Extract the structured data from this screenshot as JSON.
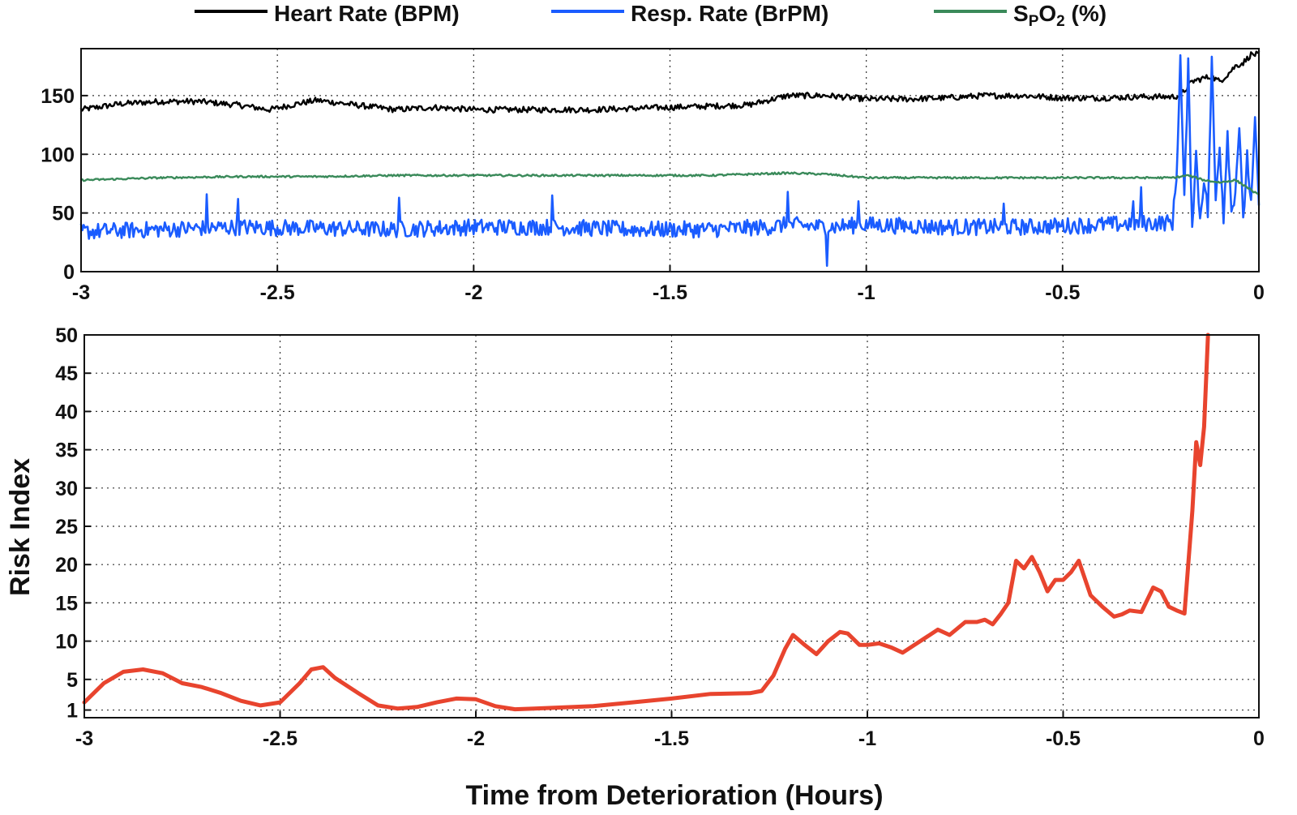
{
  "chart_data": [
    {
      "type": "line",
      "panel": "top",
      "legend_position": "top-center",
      "legend": [
        {
          "label": "Heart Rate (BPM)",
          "color": "#000000"
        },
        {
          "label": "Resp. Rate (BrPM)",
          "color": "#1a5cff"
        },
        {
          "label": "SpO2 (%)",
          "display": {
            "base": "S",
            "sub": "P",
            "mid": "O",
            "sub2": "2",
            "suffix": " (%)"
          },
          "color": "#3a8a5a"
        }
      ],
      "xlim": [
        -3,
        0
      ],
      "ylim": [
        0,
        190
      ],
      "xticks": [
        -3,
        -2.5,
        -2,
        -1.5,
        -1,
        -0.5,
        0
      ],
      "xtick_labels": [
        "-3",
        "-2.5",
        "-2",
        "-1.5",
        "-1",
        "-0.5",
        "0"
      ],
      "yticks": [
        0,
        50,
        100,
        150
      ],
      "ytick_labels": [
        "0",
        "50",
        "100",
        "150"
      ],
      "xlabel": "",
      "ylabel": "",
      "grid": true,
      "series": [
        {
          "name": "Heart Rate (BPM)",
          "color": "#000000",
          "x": [
            -3,
            -2.9,
            -2.8,
            -2.7,
            -2.6,
            -2.52,
            -2.45,
            -2.4,
            -2.3,
            -2.2,
            -2.1,
            -2.0,
            -1.9,
            -1.8,
            -1.7,
            -1.6,
            -1.5,
            -1.4,
            -1.3,
            -1.25,
            -1.2,
            -1.1,
            -1.0,
            -0.9,
            -0.8,
            -0.7,
            -0.6,
            -0.5,
            -0.4,
            -0.3,
            -0.22,
            -0.2,
            -0.17,
            -0.14,
            -0.12,
            -0.1,
            -0.08,
            -0.06,
            -0.04,
            -0.02,
            0
          ],
          "y": [
            138,
            143,
            145,
            145,
            142,
            138,
            143,
            146,
            142,
            138,
            140,
            138,
            138,
            138,
            138,
            139,
            140,
            141,
            142,
            146,
            150,
            150,
            147,
            147,
            148,
            150,
            150,
            148,
            148,
            149,
            149,
            150,
            162,
            165,
            166,
            162,
            168,
            175,
            178,
            185,
            185
          ],
          "noise": 2.5
        },
        {
          "name": "Resp. Rate (BrPM)",
          "color": "#1a5cff",
          "x": [
            -3,
            -2.8,
            -2.6,
            -2.4,
            -2.2,
            -2.0,
            -1.8,
            -1.6,
            -1.4,
            -1.25,
            -1.2,
            -1.1,
            -1.0,
            -0.8,
            -0.6,
            -0.4,
            -0.22,
            -0.21,
            -0.2,
            -0.19,
            -0.18,
            -0.17,
            -0.16,
            -0.15,
            -0.14,
            -0.13,
            -0.12,
            -0.11,
            -0.1,
            -0.09,
            -0.08,
            -0.07,
            -0.06,
            -0.05,
            -0.04,
            -0.03,
            -0.02,
            -0.01,
            0
          ],
          "y": [
            34,
            36,
            38,
            37,
            36,
            38,
            38,
            36,
            36,
            38,
            40,
            38,
            40,
            38,
            38,
            40,
            42,
            80,
            182,
            60,
            175,
            40,
            100,
            45,
            80,
            50,
            180,
            60,
            110,
            45,
            120,
            50,
            70,
            125,
            40,
            100,
            55,
            125,
            60
          ],
          "noise": 7,
          "spikes": [
            {
              "x": -2.68,
              "y": 66
            },
            {
              "x": -2.6,
              "y": 62
            },
            {
              "x": -2.19,
              "y": 63
            },
            {
              "x": -1.8,
              "y": 65
            },
            {
              "x": -1.2,
              "y": 68
            },
            {
              "x": -1.1,
              "y": 5
            },
            {
              "x": -1.02,
              "y": 60
            },
            {
              "x": -0.65,
              "y": 58
            },
            {
              "x": -0.32,
              "y": 60
            },
            {
              "x": -0.3,
              "y": 72
            }
          ]
        },
        {
          "name": "SpO2 (%)",
          "color": "#3a8a5a",
          "x": [
            -3,
            -2.8,
            -2.6,
            -2.4,
            -2.2,
            -2.0,
            -1.8,
            -1.6,
            -1.4,
            -1.2,
            -1.1,
            -1.0,
            -0.8,
            -0.6,
            -0.4,
            -0.22,
            -0.18,
            -0.14,
            -0.1,
            -0.06,
            -0.03,
            0
          ],
          "y": [
            78,
            80,
            81,
            81,
            82,
            82,
            82,
            82,
            82,
            84,
            83,
            80,
            80,
            80,
            80,
            80,
            82,
            78,
            76,
            78,
            72,
            65
          ],
          "noise": 0.8
        }
      ]
    },
    {
      "type": "line",
      "panel": "bottom",
      "xlabel": "Time from Deterioration (Hours)",
      "ylabel": "Risk Index",
      "xlim": [
        -3,
        0
      ],
      "ylim": [
        0,
        50
      ],
      "xticks": [
        -3,
        -2.5,
        -2,
        -1.5,
        -1,
        -0.5,
        0
      ],
      "xtick_labels": [
        "-3",
        "-2.5",
        "-2",
        "-1.5",
        "-1",
        "-0.5",
        "0"
      ],
      "yticks": [
        1,
        5,
        10,
        15,
        20,
        25,
        30,
        35,
        40,
        45,
        50
      ],
      "ytick_labels": [
        "1",
        "5",
        "10",
        "15",
        "20",
        "25",
        "30",
        "35",
        "40",
        "45",
        "50"
      ],
      "grid": true,
      "series": [
        {
          "name": "Risk Index",
          "color": "#e8442e",
          "x": [
            -3,
            -2.95,
            -2.9,
            -2.85,
            -2.8,
            -2.75,
            -2.7,
            -2.65,
            -2.6,
            -2.55,
            -2.5,
            -2.45,
            -2.42,
            -2.39,
            -2.36,
            -2.3,
            -2.25,
            -2.2,
            -2.15,
            -2.1,
            -2.05,
            -2.0,
            -1.95,
            -1.9,
            -1.85,
            -1.8,
            -1.7,
            -1.6,
            -1.5,
            -1.4,
            -1.3,
            -1.27,
            -1.24,
            -1.21,
            -1.19,
            -1.16,
            -1.13,
            -1.1,
            -1.07,
            -1.05,
            -1.02,
            -1.0,
            -0.97,
            -0.94,
            -0.91,
            -0.88,
            -0.85,
            -0.82,
            -0.79,
            -0.75,
            -0.72,
            -0.7,
            -0.68,
            -0.66,
            -0.64,
            -0.62,
            -0.6,
            -0.58,
            -0.56,
            -0.54,
            -0.52,
            -0.5,
            -0.48,
            -0.46,
            -0.43,
            -0.4,
            -0.37,
            -0.35,
            -0.33,
            -0.3,
            -0.27,
            -0.25,
            -0.23,
            -0.21,
            -0.19,
            -0.17,
            -0.16,
            -0.15,
            -0.14,
            -0.13
          ],
          "y": [
            2,
            4.5,
            6,
            6.3,
            5.8,
            4.5,
            4,
            3.2,
            2.2,
            1.6,
            2,
            4.5,
            6.3,
            6.6,
            5.2,
            3.2,
            1.6,
            1.2,
            1.4,
            2,
            2.5,
            2.4,
            1.5,
            1.1,
            1.2,
            1.3,
            1.5,
            2,
            2.5,
            3.1,
            3.2,
            3.5,
            5.5,
            9,
            10.8,
            9.5,
            8.3,
            10,
            11.2,
            11,
            9.5,
            9.5,
            9.7,
            9.2,
            8.5,
            9.5,
            10.5,
            11.5,
            10.8,
            12.5,
            12.5,
            12.8,
            12.2,
            13.5,
            15,
            20.5,
            19.5,
            21,
            19,
            16.5,
            18,
            18,
            19,
            20.5,
            16,
            14.5,
            13.2,
            13.5,
            14,
            13.8,
            17,
            16.5,
            14.5,
            14,
            13.6,
            27,
            36,
            33,
            38,
            50
          ]
        }
      ]
    }
  ]
}
